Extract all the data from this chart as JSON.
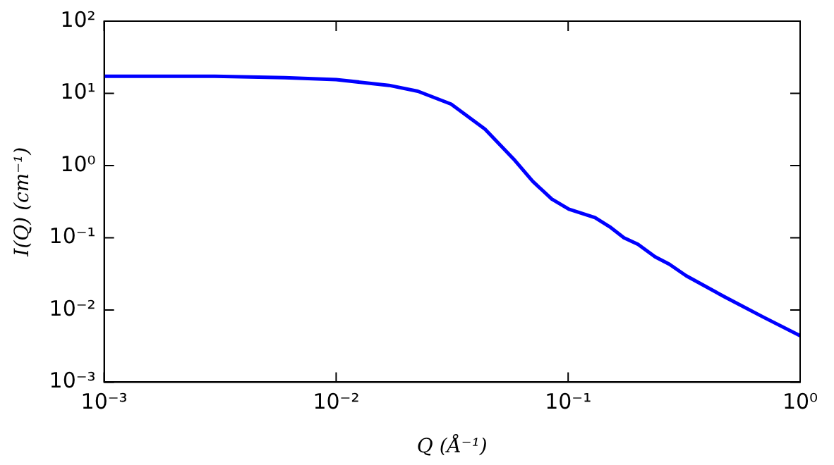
{
  "chart_data": {
    "type": "line",
    "xlabel": "Q (Å⁻¹)",
    "ylabel": "I(Q) (cm⁻¹)",
    "log": "xy",
    "grid": false,
    "legend": false,
    "marker": "none",
    "line_style": "solid",
    "xlim": [
      0.001,
      1
    ],
    "ylim": [
      0.001,
      100
    ],
    "xticks": [
      {
        "value": 0.001,
        "label": "10⁻³"
      },
      {
        "value": 0.01,
        "label": "10⁻²"
      },
      {
        "value": 0.1,
        "label": "10⁻¹"
      },
      {
        "value": 1,
        "label": "10⁰"
      }
    ],
    "yticks": [
      {
        "value": 0.001,
        "label": "10⁻³"
      },
      {
        "value": 0.01,
        "label": "10⁻²"
      },
      {
        "value": 0.1,
        "label": "10⁻¹"
      },
      {
        "value": 1,
        "label": "10⁰"
      },
      {
        "value": 10,
        "label": "10¹"
      },
      {
        "value": 100,
        "label": "10²"
      }
    ],
    "series": [
      {
        "color": "#0000ff",
        "x": [
          0.001,
          0.003,
          0.006,
          0.01,
          0.0169,
          0.0225,
          0.0313,
          0.0438,
          0.0582,
          0.0705,
          0.0851,
          0.1007,
          0.1306,
          0.151,
          0.174,
          0.2,
          0.237,
          0.273,
          0.323,
          0.472,
          0.692,
          1
        ],
        "values": [
          17.2,
          17.2,
          16.5,
          15.5,
          12.9,
          10.7,
          7.1,
          3.2,
          1.23,
          0.6,
          0.343,
          0.249,
          0.19,
          0.142,
          0.1,
          0.081,
          0.0545,
          0.043,
          0.0297,
          0.0152,
          0.008,
          0.0044
        ]
      }
    ]
  }
}
